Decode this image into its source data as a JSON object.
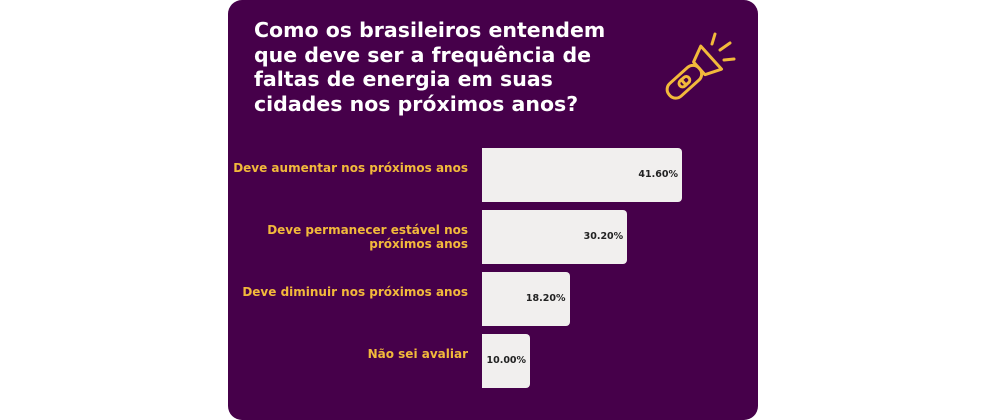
{
  "title": "Como os brasileiros entendem que deve ser a frequência de faltas de energia em suas cidades nos próximos anos?",
  "icon": "flashlight-icon",
  "colors": {
    "background": "#46004a",
    "label": "#f2b93b",
    "bar": "#f1efee",
    "title": "#ffffff"
  },
  "chart_data": {
    "type": "bar",
    "orientation": "horizontal",
    "categories": [
      "Deve aumentar nos próximos anos",
      "Deve permanecer estável nos próximos anos",
      "Deve diminuir nos próximos anos",
      "Não sei avaliar"
    ],
    "values": [
      41.6,
      30.2,
      18.2,
      10.0
    ],
    "value_labels": [
      "41.60%",
      "30.20%",
      "18.20%",
      "10.00%"
    ],
    "unit": "%",
    "xlim": [
      0,
      41.6
    ],
    "grid": false
  }
}
